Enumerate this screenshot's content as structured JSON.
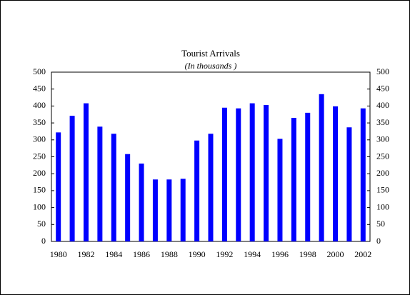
{
  "chart_data": {
    "type": "bar",
    "title": "Tourist Arrivals",
    "subtitle": "(In thousands )",
    "categories": [
      "1980",
      null,
      "1982",
      null,
      "1984",
      null,
      "1986",
      null,
      "1988",
      null,
      "1990",
      null,
      "1992",
      null,
      "1994",
      null,
      "1996",
      null,
      "1998",
      null,
      "2000",
      null,
      "2002"
    ],
    "values": [
      322,
      371,
      408,
      339,
      318,
      258,
      230,
      183,
      183,
      185,
      298,
      318,
      395,
      393,
      408,
      403,
      303,
      365,
      380,
      435,
      399,
      337,
      393
    ],
    "color": "#0000ff",
    "ylim": [
      0,
      500
    ],
    "yticks": [
      0,
      50,
      100,
      150,
      200,
      250,
      300,
      350,
      400,
      450,
      500
    ],
    "y2lim": [
      0,
      500
    ],
    "y2ticks": [
      0,
      50,
      100,
      150,
      200,
      250,
      300,
      350,
      400,
      450,
      500
    ],
    "grid": false
  }
}
